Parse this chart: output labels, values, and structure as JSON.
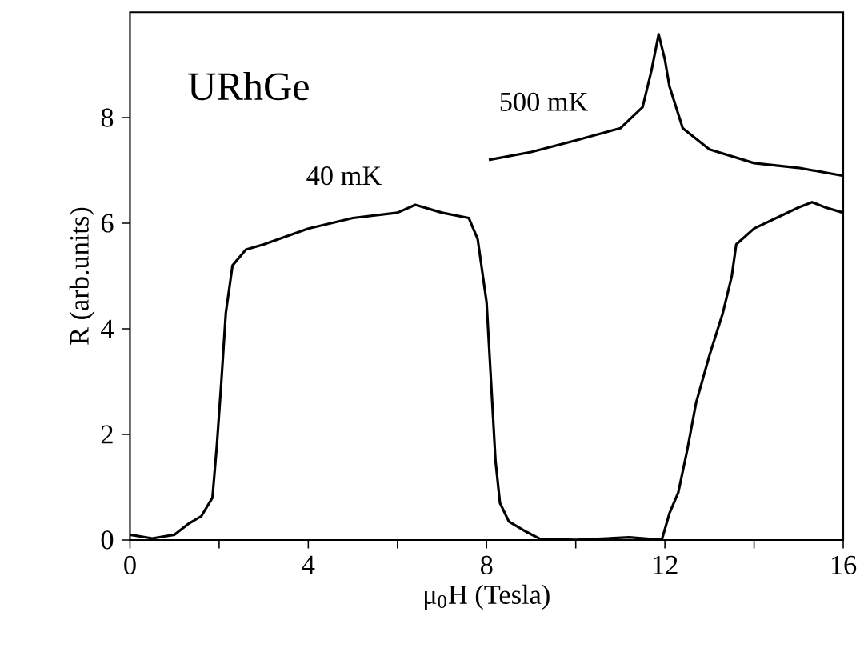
{
  "chart_data": {
    "type": "line",
    "xlabel": "μ$_{0}$H (Tesla)",
    "ylabel": "R (arb.units)",
    "annotations": [
      "URhGe"
    ],
    "xlim": [
      0,
      16
    ],
    "ylim": [
      0,
      10
    ],
    "xticks": [
      0,
      {
        "value": 2,
        "label": null
      },
      4,
      {
        "value": 6,
        "label": null
      },
      8,
      {
        "value": 10,
        "label": null
      },
      12,
      {
        "value": 14,
        "label": null
      },
      16
    ],
    "yticks": [
      0,
      2,
      4,
      6,
      8
    ],
    "marker": "none",
    "line_style": "solid",
    "series": [
      {
        "name": "40 mK",
        "color": "#000000",
        "x": [
          0,
          0.5,
          1,
          1.3,
          1.6,
          1.85,
          1.95,
          2.05,
          2.15,
          2.3,
          2.6,
          3,
          4,
          5,
          6,
          6.4,
          7,
          7.6,
          7.8,
          8.0,
          8.1,
          8.2,
          8.3,
          8.5,
          8.9,
          9.2,
          10,
          11.2,
          11.93,
          12.1,
          12.3,
          12.5,
          12.7,
          13.0,
          13.3,
          13.5,
          13.6,
          14,
          14.5,
          15,
          15.3,
          15.6,
          16
        ],
        "values": [
          0.1,
          0.03,
          0.1,
          0.3,
          0.45,
          0.8,
          1.8,
          3.0,
          4.3,
          5.2,
          5.5,
          5.6,
          5.9,
          6.1,
          6.2,
          6.35,
          6.2,
          6.1,
          5.7,
          4.5,
          3.0,
          1.5,
          0.7,
          0.35,
          0.15,
          0.02,
          0,
          0.05,
          0,
          0.5,
          0.9,
          1.7,
          2.6,
          3.5,
          4.3,
          5.0,
          5.6,
          5.9,
          6.1,
          6.3,
          6.4,
          6.3,
          6.2
        ]
      },
      {
        "name": "500 mK",
        "color": "#000000",
        "x": [
          8.05,
          9,
          10,
          11,
          11.5,
          11.7,
          11.86,
          12.0,
          12.1,
          12.4,
          13,
          14,
          15,
          16
        ],
        "values": [
          7.2,
          7.35,
          7.57,
          7.8,
          8.2,
          8.9,
          9.58,
          9.1,
          8.6,
          7.8,
          7.4,
          7.14,
          7.05,
          6.9
        ]
      }
    ]
  }
}
